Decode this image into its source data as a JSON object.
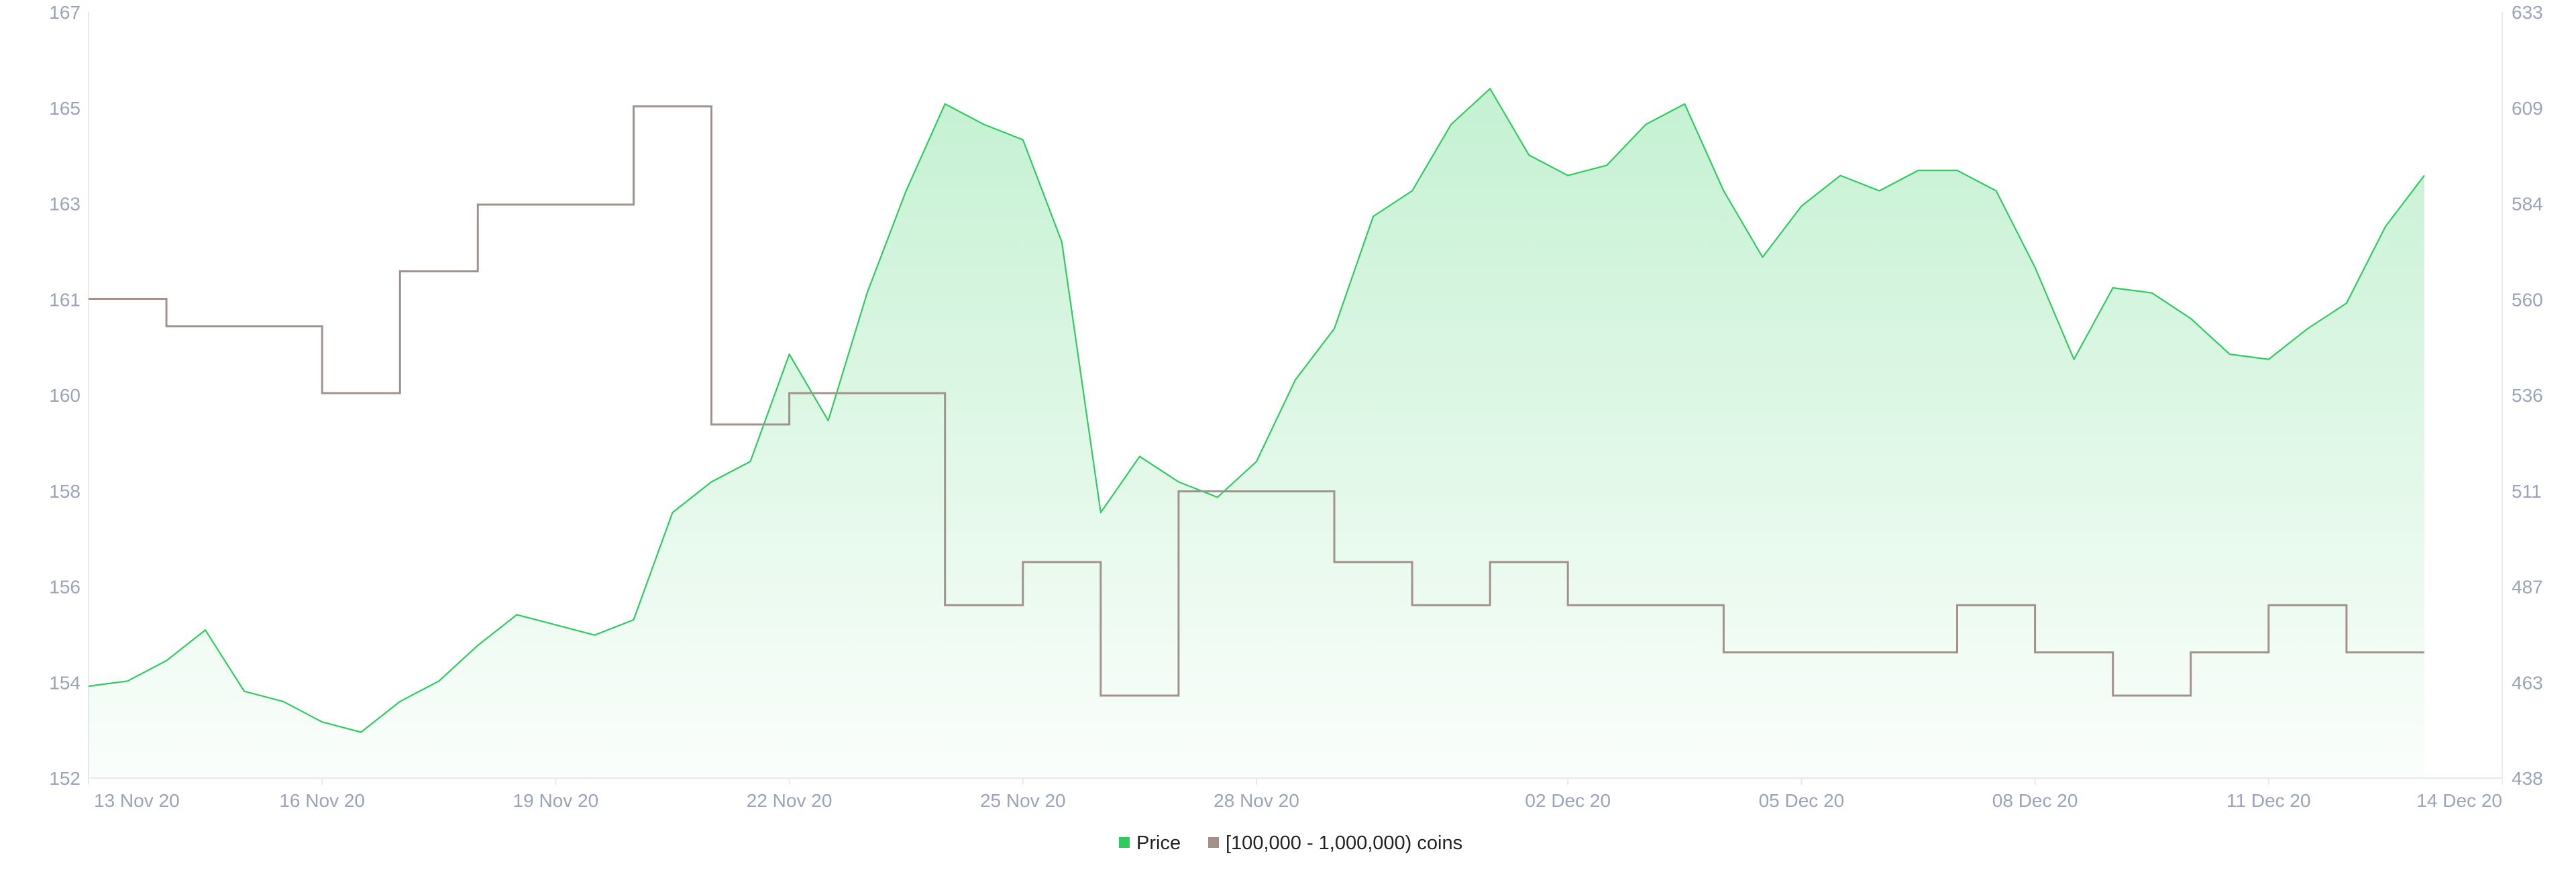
{
  "chart_data": {
    "type": "line",
    "title": "",
    "xlabel": "",
    "ylabel_left": "",
    "ylabel_right": "",
    "x_range": [
      "2020-11-13",
      "2020-12-14"
    ],
    "y_left_ticks": [
      "152",
      "154",
      "156",
      "158",
      "160",
      "161",
      "163",
      "165",
      "167"
    ],
    "y_right_ticks": [
      "438",
      "463",
      "487",
      "511",
      "536",
      "560",
      "584",
      "609",
      "633"
    ],
    "x_ticks": [
      {
        "date": "2020-11-13",
        "label": "13 Nov 20"
      },
      {
        "date": "2020-11-16",
        "label": "16 Nov 20"
      },
      {
        "date": "2020-11-19",
        "label": "19 Nov 20"
      },
      {
        "date": "2020-11-22",
        "label": "22 Nov 20"
      },
      {
        "date": "2020-11-25",
        "label": "25 Nov 20"
      },
      {
        "date": "2020-11-28",
        "label": "28 Nov 20"
      },
      {
        "date": "2020-12-02",
        "label": "02 Dec 20"
      },
      {
        "date": "2020-12-05",
        "label": "05 Dec 20"
      },
      {
        "date": "2020-12-08",
        "label": "08 Dec 20"
      },
      {
        "date": "2020-12-11",
        "label": "11 Dec 20"
      },
      {
        "date": "2020-12-14",
        "label": "14 Dec 20"
      }
    ],
    "legend_position": "bottom-center",
    "grid": false,
    "series": [
      {
        "name": "Price",
        "type": "area",
        "axis": "left",
        "color": "#2ecc5e",
        "points": [
          [
            "2020-11-13 00:00",
            153.8
          ],
          [
            "2020-11-13 12:00",
            153.9
          ],
          [
            "2020-11-14 00:00",
            154.3
          ],
          [
            "2020-11-14 12:00",
            154.9
          ],
          [
            "2020-11-15 00:00",
            153.7
          ],
          [
            "2020-11-15 12:00",
            153.5
          ],
          [
            "2020-11-16 00:00",
            153.1
          ],
          [
            "2020-11-16 12:00",
            152.9
          ],
          [
            "2020-11-17 00:00",
            153.5
          ],
          [
            "2020-11-17 12:00",
            153.9
          ],
          [
            "2020-11-18 00:00",
            154.6
          ],
          [
            "2020-11-18 12:00",
            155.2
          ],
          [
            "2020-11-19 00:00",
            155.0
          ],
          [
            "2020-11-19 12:00",
            154.8
          ],
          [
            "2020-11-20 00:00",
            155.1
          ],
          [
            "2020-11-20 12:00",
            157.2
          ],
          [
            "2020-11-21 00:00",
            157.8
          ],
          [
            "2020-11-21 12:00",
            158.2
          ],
          [
            "2020-11-22 00:00",
            160.3
          ],
          [
            "2020-11-22 12:00",
            159.0
          ],
          [
            "2020-11-23 00:00",
            161.5
          ],
          [
            "2020-11-23 12:00",
            163.5
          ],
          [
            "2020-11-24 00:00",
            165.2
          ],
          [
            "2020-11-24 12:00",
            164.8
          ],
          [
            "2020-11-25 00:00",
            164.5
          ],
          [
            "2020-11-25 12:00",
            162.5
          ],
          [
            "2020-11-26 00:00",
            157.2
          ],
          [
            "2020-11-26 12:00",
            158.3
          ],
          [
            "2020-11-27 00:00",
            157.8
          ],
          [
            "2020-11-27 12:00",
            157.5
          ],
          [
            "2020-11-28 00:00",
            158.2
          ],
          [
            "2020-11-28 12:00",
            159.8
          ],
          [
            "2020-11-29 00:00",
            160.8
          ],
          [
            "2020-11-29 12:00",
            163.0
          ],
          [
            "2020-11-30 00:00",
            163.5
          ],
          [
            "2020-11-30 12:00",
            164.8
          ],
          [
            "2020-12-01 00:00",
            165.5
          ],
          [
            "2020-12-01 12:00",
            164.2
          ],
          [
            "2020-12-02 00:00",
            163.8
          ],
          [
            "2020-12-02 12:00",
            164.0
          ],
          [
            "2020-12-03 00:00",
            164.8
          ],
          [
            "2020-12-03 12:00",
            165.2
          ],
          [
            "2020-12-04 00:00",
            163.5
          ],
          [
            "2020-12-04 12:00",
            162.2
          ],
          [
            "2020-12-05 00:00",
            163.2
          ],
          [
            "2020-12-05 12:00",
            163.8
          ],
          [
            "2020-12-06 00:00",
            163.5
          ],
          [
            "2020-12-06 12:00",
            163.9
          ],
          [
            "2020-12-07 00:00",
            163.9
          ],
          [
            "2020-12-07 12:00",
            163.5
          ],
          [
            "2020-12-08 00:00",
            162.0
          ],
          [
            "2020-12-08 12:00",
            160.2
          ],
          [
            "2020-12-09 00:00",
            161.6
          ],
          [
            "2020-12-09 12:00",
            161.5
          ],
          [
            "2020-12-10 00:00",
            161.0
          ],
          [
            "2020-12-10 12:00",
            160.3
          ],
          [
            "2020-12-11 00:00",
            160.2
          ],
          [
            "2020-12-11 12:00",
            160.8
          ],
          [
            "2020-12-12 00:00",
            161.3
          ],
          [
            "2020-12-12 12:00",
            162.8
          ],
          [
            "2020-12-13 00:00",
            163.8
          ]
        ]
      },
      {
        "name": "[100,000  - 1,000,000) coins",
        "type": "step",
        "axis": "right",
        "color": "#a3928c",
        "points": [
          [
            "2020-11-13 00:00",
            560
          ],
          [
            "2020-11-14 00:00",
            553
          ],
          [
            "2020-11-16 00:00",
            536
          ],
          [
            "2020-11-17 00:00",
            567
          ],
          [
            "2020-11-18 00:00",
            584
          ],
          [
            "2020-11-20 00:00",
            609
          ],
          [
            "2020-11-21 00:00",
            528
          ],
          [
            "2020-11-22 00:00",
            536
          ],
          [
            "2020-11-24 00:00",
            482
          ],
          [
            "2020-11-25 00:00",
            493
          ],
          [
            "2020-11-26 00:00",
            459
          ],
          [
            "2020-11-27 00:00",
            511
          ],
          [
            "2020-11-29 00:00",
            493
          ],
          [
            "2020-11-30 00:00",
            482
          ],
          [
            "2020-12-01 00:00",
            493
          ],
          [
            "2020-12-02 00:00",
            482
          ],
          [
            "2020-12-04 00:00",
            470
          ],
          [
            "2020-12-07 00:00",
            482
          ],
          [
            "2020-12-08 00:00",
            470
          ],
          [
            "2020-12-09 00:00",
            459
          ],
          [
            "2020-12-10 00:00",
            470
          ],
          [
            "2020-12-11 00:00",
            482
          ],
          [
            "2020-12-12 00:00",
            470
          ],
          [
            "2020-12-13 00:00",
            470
          ]
        ]
      }
    ]
  }
}
